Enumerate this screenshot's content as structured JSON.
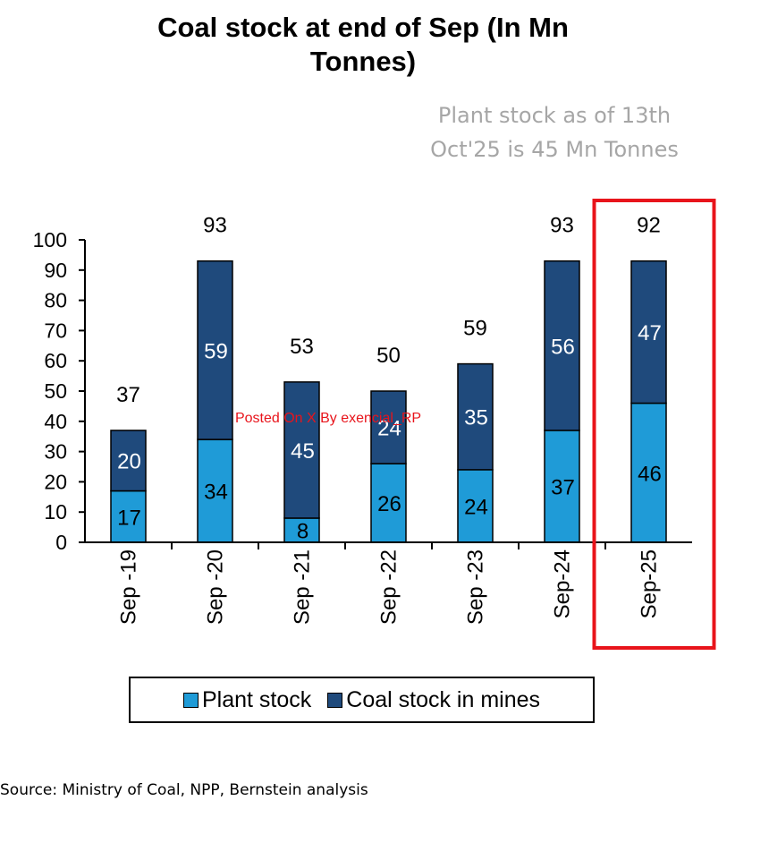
{
  "chart_data": {
    "type": "bar",
    "stacked": true,
    "title_lines": [
      "Coal stock at end of Sep (In Mn",
      "Tonnes)"
    ],
    "annotation_lines": [
      "Plant stock as of 13th",
      "Oct'25 is 45 Mn Tonnes"
    ],
    "categories": [
      "Sep -19",
      "Sep -20",
      "Sep -21",
      "Sep -22",
      "Sep -23",
      "Sep-24",
      "Sep-25"
    ],
    "series": [
      {
        "name": "Plant stock",
        "color": "#1f9bd7",
        "values": [
          17,
          34,
          8,
          26,
          24,
          37,
          46
        ]
      },
      {
        "name": "Coal stock in mines",
        "color": "#1f4a7c",
        "values": [
          20,
          59,
          45,
          24,
          35,
          56,
          47
        ]
      }
    ],
    "totals": [
      37,
      93,
      53,
      50,
      59,
      93,
      92
    ],
    "ylim": [
      0,
      100
    ],
    "yticks": [
      0,
      10,
      20,
      30,
      40,
      50,
      60,
      70,
      80,
      90,
      100
    ],
    "highlight_category": "Sep-25",
    "highlight_color": "#e8141b",
    "legend_position": "bottom",
    "grid": false
  },
  "watermark": "Posted On X By exencial_RP",
  "source": "Source: Ministry of Coal, NPP, Bernstein analysis"
}
